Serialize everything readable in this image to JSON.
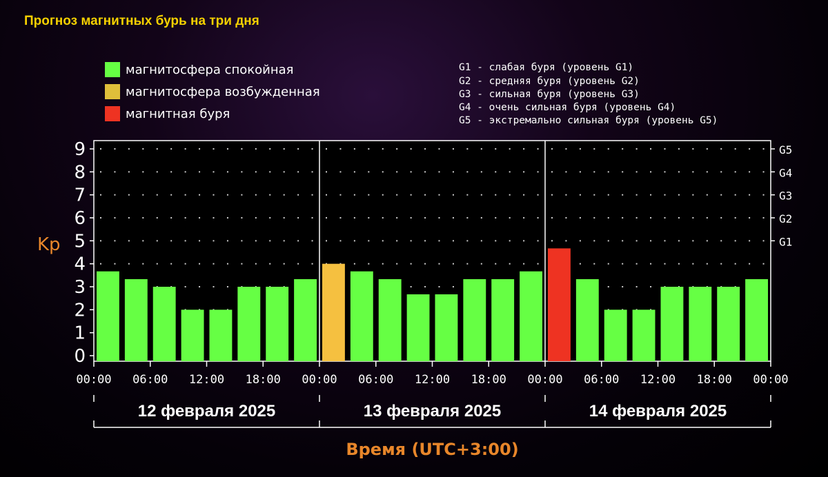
{
  "title": "Прогноз магнитных бурь на три дня",
  "legend": [
    {
      "label": "магнитосфера спокойная",
      "color": "#66ff44"
    },
    {
      "label": "магнитосфера возбужденная",
      "color": "#dfbf3a"
    },
    {
      "label": "магнитная буря",
      "color": "#ee3322"
    }
  ],
  "g_levels": [
    "G1 - слабая буря (уровень G1)",
    "G2 - средняя буря (уровень G2)",
    "G3 - сильная буря (уровень G3)",
    "G4 - очень сильная буря (уровень G4)",
    "G5 - экстремально сильная буря (уровень G5)"
  ],
  "colors": {
    "quiet": "#66ff44",
    "excited": "#f5c040",
    "storm": "#ee3322",
    "axis_label": "#e8862a"
  },
  "chart_data": {
    "type": "bar",
    "ylabel": "Kp",
    "xlabel": "Время (UTC+3:00)",
    "ylim": [
      0,
      9
    ],
    "y_ticks": [
      "0",
      "1",
      "2",
      "3",
      "4",
      "5",
      "6",
      "7",
      "8",
      "9"
    ],
    "right_ticks": [
      {
        "label": "G1",
        "value": 5
      },
      {
        "label": "G2",
        "value": 6
      },
      {
        "label": "G3",
        "value": 7
      },
      {
        "label": "G4",
        "value": 8
      },
      {
        "label": "G5",
        "value": 9
      }
    ],
    "x_tick_labels": [
      "00:00",
      "06:00",
      "12:00",
      "18:00",
      "00:00",
      "06:00",
      "12:00",
      "18:00",
      "00:00",
      "06:00",
      "12:00",
      "18:00",
      "00:00"
    ],
    "days": [
      "12 февраля 2025",
      "13 февраля 2025",
      "14 февраля 2025"
    ],
    "values": [
      3.67,
      3.33,
      3.0,
      2.0,
      2.0,
      3.0,
      3.0,
      3.33,
      4.0,
      3.67,
      3.33,
      2.67,
      2.67,
      3.33,
      3.33,
      3.67,
      4.67,
      3.33,
      2.0,
      2.0,
      3.0,
      3.0,
      3.0,
      3.33
    ],
    "statuses": [
      "quiet",
      "quiet",
      "quiet",
      "quiet",
      "quiet",
      "quiet",
      "quiet",
      "quiet",
      "excited",
      "quiet",
      "quiet",
      "quiet",
      "quiet",
      "quiet",
      "quiet",
      "quiet",
      "storm",
      "quiet",
      "quiet",
      "quiet",
      "quiet",
      "quiet",
      "quiet",
      "quiet"
    ],
    "grid": true
  }
}
